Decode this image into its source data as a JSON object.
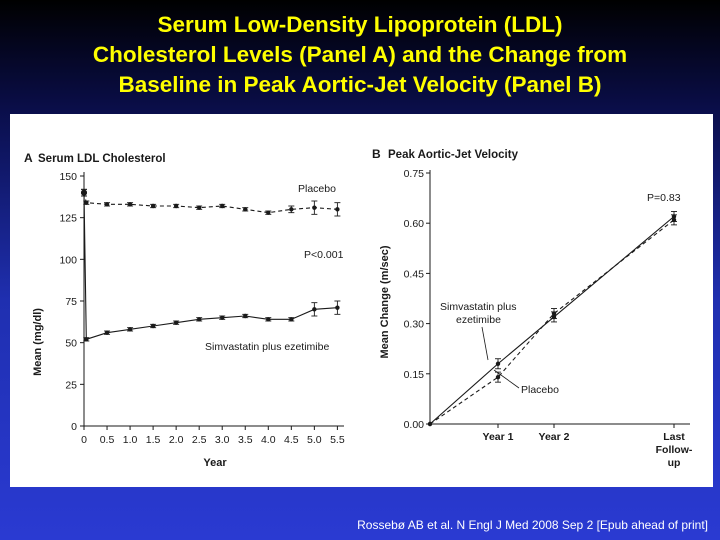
{
  "slide": {
    "title_lines": [
      "Serum Low-Density Lipoprotein (LDL)",
      "Cholesterol Levels (Panel A) and the Change from",
      "Baseline in Peak Aortic-Jet Velocity (Panel B)"
    ],
    "citation": "Rossebø AB et al. N Engl J Med 2008 Sep 2 [Epub ahead of print]"
  },
  "colors": {
    "title": "#ffff00",
    "panel_bg": "#ffffff",
    "ink": "#1a1a1a"
  },
  "chart_data": [
    {
      "type": "line",
      "panel_letter": "A",
      "title": "Serum LDL Cholesterol",
      "xlabel": "Year",
      "ylabel": "Mean (mg/dl)",
      "xlim": [
        0,
        5.6
      ],
      "ylim": [
        0,
        150
      ],
      "x_ticks": [
        0,
        0.5,
        1.0,
        1.5,
        2.0,
        2.5,
        3.0,
        3.5,
        4.0,
        4.5,
        5.0,
        5.5
      ],
      "x_tick_labels": [
        "0",
        "0.5",
        "1.0",
        "1.5",
        "2.0",
        "2.5",
        "3.0",
        "3.5",
        "4.0",
        "4.5",
        "5.0",
        "5.5"
      ],
      "y_ticks": [
        0,
        25,
        50,
        75,
        100,
        125,
        150
      ],
      "y_tick_labels": [
        "0",
        "25",
        "50",
        "75",
        "100",
        "125",
        "150"
      ],
      "grid": false,
      "annotation": "P<0.001",
      "series": [
        {
          "name": "Placebo",
          "style": "dashed",
          "x": [
            0,
            0.05,
            0.5,
            1.0,
            1.5,
            2.0,
            2.5,
            3.0,
            3.5,
            4.0,
            4.5,
            5.0,
            5.5
          ],
          "y": [
            140,
            134,
            133,
            133,
            132,
            132,
            131,
            132,
            130,
            128,
            130,
            131,
            130
          ],
          "err": [
            2,
            1,
            1,
            1,
            1,
            1,
            1,
            1,
            1,
            1,
            2,
            4,
            4
          ]
        },
        {
          "name": "Simvastatin plus ezetimibe",
          "style": "solid",
          "x": [
            0,
            0.05,
            0.5,
            1.0,
            1.5,
            2.0,
            2.5,
            3.0,
            3.5,
            4.0,
            4.5,
            5.0,
            5.5
          ],
          "y": [
            140,
            52,
            56,
            58,
            60,
            62,
            64,
            65,
            66,
            64,
            64,
            70,
            71
          ],
          "err": [
            2,
            1,
            1,
            1,
            1,
            1,
            1,
            1,
            1,
            1,
            1,
            4,
            4
          ]
        }
      ]
    },
    {
      "type": "line",
      "panel_letter": "B",
      "title": "Peak Aortic-Jet Velocity",
      "xlabel": "",
      "ylabel": "Mean Change (m/sec)",
      "categories": [
        "",
        "Year 1",
        "Year 2",
        "Last Follow-up"
      ],
      "category_labels": [
        "",
        "Year 1",
        "Year 2",
        "Last\nFollow-\nup"
      ],
      "ylim": [
        0,
        0.75
      ],
      "y_ticks": [
        0,
        0.15,
        0.3,
        0.45,
        0.6,
        0.75
      ],
      "y_tick_labels": [
        "0.00",
        "0.15",
        "0.30",
        "0.45",
        "0.60",
        "0.75"
      ],
      "grid": false,
      "annotation": "P=0.83",
      "series": [
        {
          "name": "Simvastatin plus ezetimibe",
          "style": "solid",
          "y": [
            0,
            0.18,
            0.32,
            0.62
          ],
          "err": [
            0,
            0.015,
            0.015,
            0.015
          ]
        },
        {
          "name": "Placebo",
          "style": "dashed",
          "y": [
            0,
            0.14,
            0.33,
            0.61
          ],
          "err": [
            0,
            0.015,
            0.015,
            0.015
          ]
        }
      ]
    }
  ]
}
